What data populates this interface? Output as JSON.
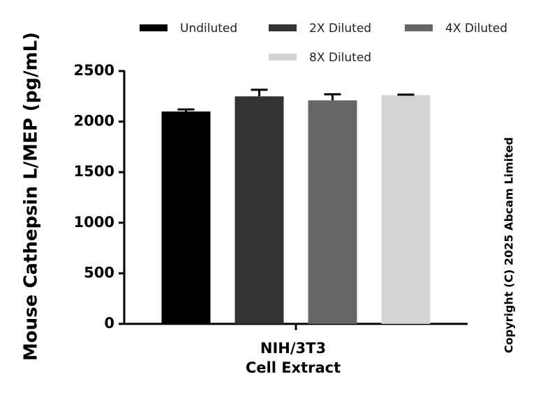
{
  "chart_data": {
    "type": "bar",
    "y_label": "Mouse Cathepsin L/MEP (pg/mL)",
    "copyright": "Copyright (C) 2025 Abcam Limited",
    "categories": [
      "NIH/3T3\nCell Extract"
    ],
    "series": [
      {
        "name": "Undiluted",
        "color": "#000000",
        "values": [
          2100
        ],
        "errors": [
          20
        ]
      },
      {
        "name": "2X Diluted",
        "color": "#333333",
        "values": [
          2250
        ],
        "errors": [
          65
        ]
      },
      {
        "name": "4X Diluted",
        "color": "#666666",
        "values": [
          2210
        ],
        "errors": [
          60
        ]
      },
      {
        "name": "8X Diluted",
        "color": "#d4d4d4",
        "values": [
          2262
        ],
        "errors": [
          5
        ]
      }
    ],
    "ylim": [
      0,
      2500
    ],
    "yticks": [
      0,
      500,
      1000,
      1500,
      2000,
      2500
    ]
  }
}
